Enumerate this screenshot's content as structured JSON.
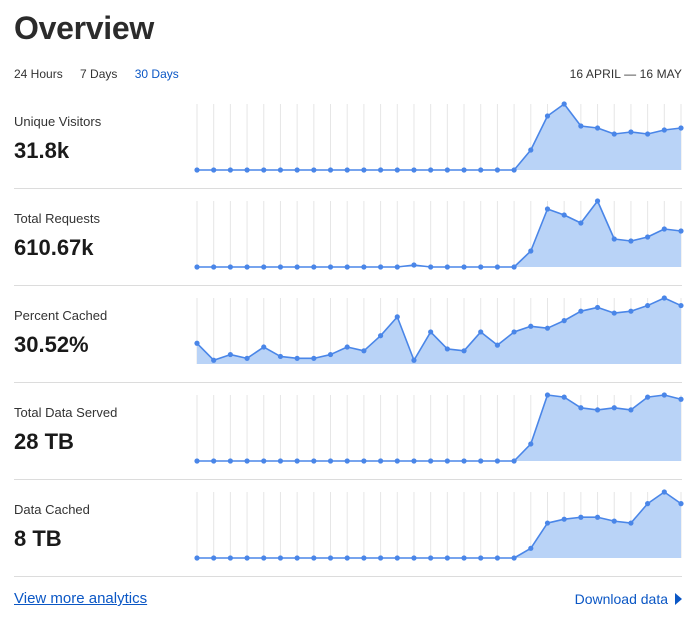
{
  "page": {
    "title": "Overview"
  },
  "tabs": [
    {
      "label": "24 Hours",
      "active": false
    },
    {
      "label": "7 Days",
      "active": false
    },
    {
      "label": "30 Days",
      "active": true
    }
  ],
  "date_range": "16 APRIL — 16 MAY",
  "colors": {
    "accent": "#0b57c5",
    "line": "#4a86e8",
    "fill": "#b9d3f7",
    "grid": "#e6e6e6"
  },
  "metrics": [
    {
      "label": "Unique Visitors",
      "value": "31.8k"
    },
    {
      "label": "Total Requests",
      "value": "610.67k"
    },
    {
      "label": "Percent Cached",
      "value": "30.52%"
    },
    {
      "label": "Total Data Served",
      "value": "28 TB"
    },
    {
      "label": "Data Cached",
      "value": "8 TB"
    }
  ],
  "chart_data": [
    {
      "type": "area",
      "series": [
        {
          "values": [
            0,
            0,
            0,
            0,
            0,
            0,
            0,
            0,
            0,
            0,
            0,
            0,
            0,
            0,
            0,
            0,
            0,
            0,
            0,
            0,
            10,
            27,
            33,
            22,
            21,
            18,
            19,
            18,
            20,
            21
          ]
        }
      ],
      "ylim": [
        0,
        33
      ]
    },
    {
      "type": "area",
      "series": [
        {
          "values": [
            0,
            0,
            0,
            0,
            0,
            0,
            0,
            0,
            0,
            0,
            0,
            0,
            0,
            1,
            0,
            0,
            0,
            0,
            0,
            0,
            8,
            29,
            26,
            22,
            33,
            14,
            13,
            15,
            19,
            18
          ]
        }
      ],
      "ylim": [
        0,
        33
      ]
    },
    {
      "type": "area",
      "series": [
        {
          "values": [
            11,
            2,
            5,
            3,
            9,
            4,
            3,
            3,
            5,
            9,
            7,
            15,
            25,
            2,
            17,
            8,
            7,
            17,
            10,
            17,
            20,
            19,
            23,
            28,
            30,
            27,
            28,
            31,
            35,
            31
          ]
        }
      ],
      "ylim": [
        0,
        35
      ]
    },
    {
      "type": "area",
      "series": [
        {
          "values": [
            0,
            0,
            0,
            0,
            0,
            0,
            0,
            0,
            0,
            0,
            0,
            0,
            0,
            0,
            0,
            0,
            0,
            0,
            0,
            0,
            8,
            31,
            30,
            25,
            24,
            25,
            24,
            30,
            31,
            29
          ]
        }
      ],
      "ylim": [
        0,
        31
      ]
    },
    {
      "type": "area",
      "series": [
        {
          "values": [
            0,
            0,
            0,
            0,
            0,
            0,
            0,
            0,
            0,
            0,
            0,
            0,
            0,
            0,
            0,
            0,
            0,
            0,
            0,
            0,
            5,
            18,
            20,
            21,
            21,
            19,
            18,
            28,
            34,
            28
          ]
        }
      ],
      "ylim": [
        0,
        34
      ]
    }
  ],
  "footer": {
    "more_link": "View more analytics",
    "download_label": "Download data"
  }
}
